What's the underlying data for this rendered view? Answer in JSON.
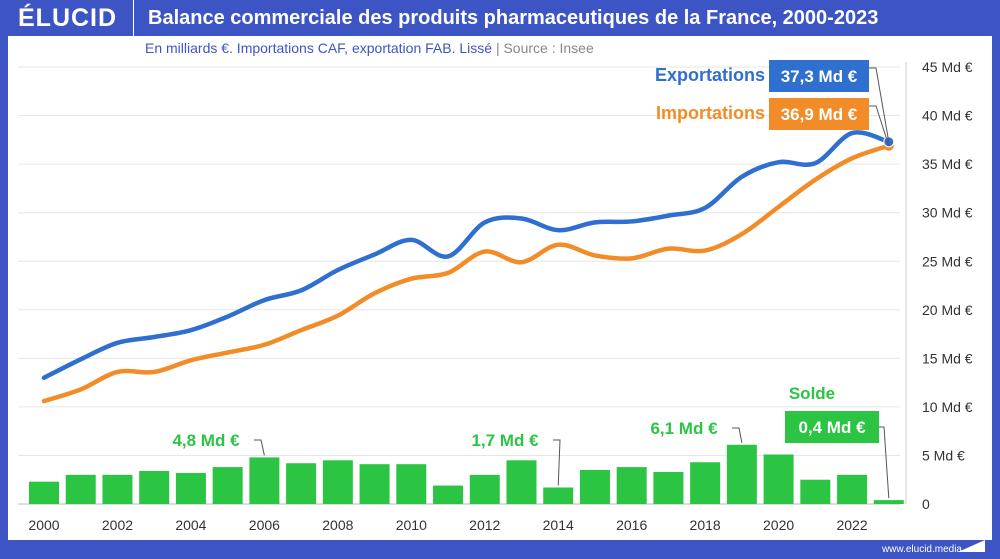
{
  "header": {
    "logo": "ÉLUCID",
    "title": "Balance commerciale des produits pharmaceutiques de la France, 2000-2023"
  },
  "subtitle": {
    "text": "En milliards €. Importations CAF, exportation FAB. Lissé",
    "separator": "|",
    "source": "Source : Insee"
  },
  "footer": {
    "url": "www.elucid.media"
  },
  "colors": {
    "exports": "#2f6fd0",
    "imports": "#f28c28",
    "solde": "#2bc443",
    "brand": "#3d55c4"
  },
  "chart_data": {
    "type": "line+bar",
    "title": "Balance commerciale des produits pharmaceutiques de la France, 2000-2023",
    "x": [
      2000,
      2001,
      2002,
      2003,
      2004,
      2005,
      2006,
      2007,
      2008,
      2009,
      2010,
      2011,
      2012,
      2013,
      2014,
      2015,
      2016,
      2017,
      2018,
      2019,
      2020,
      2021,
      2022,
      2023
    ],
    "x_tick_labels": [
      "2000",
      "2002",
      "2004",
      "2006",
      "2008",
      "2010",
      "2012",
      "2014",
      "2016",
      "2018",
      "2020",
      "2022"
    ],
    "y_tick_labels": [
      "0",
      "5 Md €",
      "10 Md €",
      "15 Md €",
      "20 Md €",
      "25 Md €",
      "30 Md €",
      "35 Md €",
      "40 Md €",
      "45 Md €"
    ],
    "ylim": [
      0,
      45
    ],
    "grid": true,
    "y_axis_position": "right",
    "series": [
      {
        "name": "Exportations",
        "type": "line",
        "values": [
          13.0,
          14.9,
          16.6,
          17.2,
          17.9,
          19.3,
          21.0,
          22.0,
          24.1,
          25.7,
          27.2,
          25.5,
          29.0,
          29.4,
          28.2,
          29.0,
          29.1,
          29.7,
          30.5,
          33.7,
          35.2,
          35.1,
          38.2,
          37.3
        ],
        "end_label": "37,3 Md €"
      },
      {
        "name": "Importations",
        "type": "line",
        "values": [
          10.6,
          11.8,
          13.6,
          13.6,
          14.8,
          15.6,
          16.4,
          17.9,
          19.4,
          21.7,
          23.2,
          23.8,
          26.0,
          24.9,
          26.7,
          25.6,
          25.3,
          26.3,
          26.1,
          27.8,
          30.6,
          33.4,
          35.6,
          36.9
        ],
        "end_label": "36,9 Md €"
      },
      {
        "name": "Solde",
        "type": "bar",
        "values": [
          2.3,
          3.0,
          3.0,
          3.4,
          3.2,
          3.8,
          4.8,
          4.2,
          4.5,
          4.1,
          4.1,
          1.9,
          3.0,
          4.5,
          1.7,
          3.5,
          3.8,
          3.3,
          4.3,
          6.1,
          5.1,
          2.5,
          3.0,
          0.4
        ]
      }
    ],
    "annotations": [
      {
        "year": 2006,
        "text": "4,8 Md €"
      },
      {
        "year": 2014,
        "text": "1,7 Md €"
      },
      {
        "year": 2019,
        "text": "6,1 Md €"
      },
      {
        "year": 2023,
        "text": "0,4 Md €"
      }
    ]
  }
}
